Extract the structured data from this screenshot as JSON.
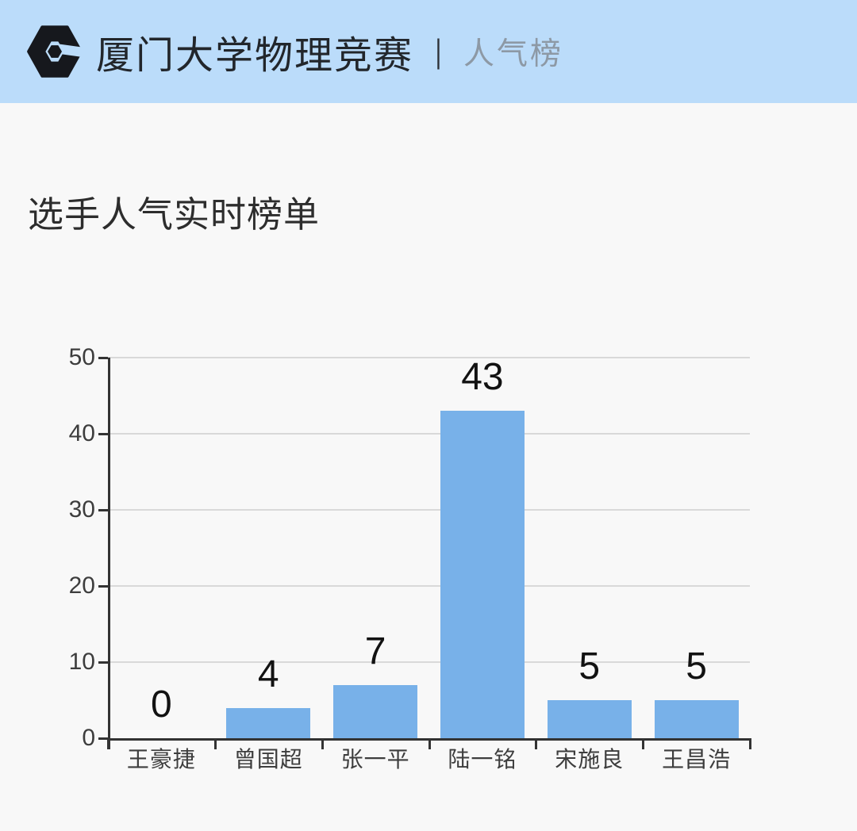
{
  "header": {
    "brand": "厦门大学物理竞赛",
    "separator": "|",
    "section": "人气榜",
    "bg_color": "#bbdcfa",
    "logo_color": "#16181d"
  },
  "page": {
    "title": "选手人气实时榜单",
    "bg_color": "#f8f8f8"
  },
  "chart_data": {
    "type": "bar",
    "title": "选手人气实时榜单",
    "categories": [
      "王豪捷",
      "曾国超",
      "张一平",
      "陆一铭",
      "宋施良",
      "王昌浩"
    ],
    "values": [
      0,
      4,
      7,
      43,
      5,
      5
    ],
    "xlabel": "",
    "ylabel": "",
    "ylim": [
      0,
      50
    ],
    "yticks": [
      0,
      10,
      20,
      30,
      40,
      50
    ],
    "grid": true,
    "legend": "none",
    "bar_color": "#78b1e9",
    "value_labels_shown": true
  }
}
